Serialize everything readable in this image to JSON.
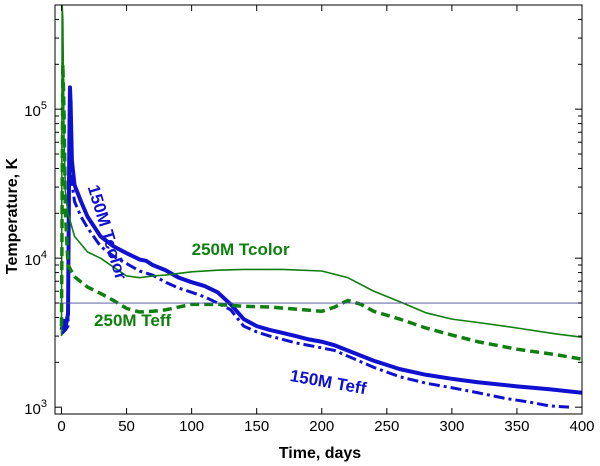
{
  "chart_data": {
    "type": "line",
    "title": "",
    "xlabel": "Time, days",
    "ylabel": "Temperature, K",
    "xlim": [
      -5,
      400
    ],
    "ylim": [
      900,
      500000
    ],
    "yscale": "log",
    "grid": false,
    "x_ticks": [
      0,
      50,
      100,
      150,
      200,
      250,
      300,
      350,
      400
    ],
    "x_tick_labels": [
      "0",
      "50",
      "100",
      "150",
      "200",
      "250",
      "300",
      "350",
      "400"
    ],
    "y_ticks": [
      {
        "value": 1000,
        "base": "10",
        "exp": "3"
      },
      {
        "value": 10000,
        "base": "10",
        "exp": "4"
      },
      {
        "value": 100000,
        "base": "10",
        "exp": "5"
      }
    ],
    "colors": {
      "blue": "#1010d0",
      "green": "#0f7f0f",
      "ref": "#4a4a9a"
    },
    "series": [
      {
        "name": "150M Tcolor",
        "color": "#1010d0",
        "style": "solid",
        "width": 4,
        "points": [
          [
            0,
            3300
          ],
          [
            2,
            3800
          ],
          [
            3,
            3400
          ],
          [
            4,
            3800
          ],
          [
            5,
            4200
          ],
          [
            5.5,
            15000
          ],
          [
            6,
            60000
          ],
          [
            6.5,
            140000
          ],
          [
            7,
            110000
          ],
          [
            8,
            45000
          ],
          [
            10,
            31000
          ],
          [
            15,
            24000
          ],
          [
            20,
            19000
          ],
          [
            30,
            14000
          ],
          [
            40,
            12000
          ],
          [
            50,
            10800
          ],
          [
            60,
            9800
          ],
          [
            65,
            9600
          ],
          [
            70,
            9000
          ],
          [
            80,
            8300
          ],
          [
            90,
            7400
          ],
          [
            100,
            6900
          ],
          [
            110,
            6500
          ],
          [
            120,
            5900
          ],
          [
            130,
            4900
          ],
          [
            140,
            3900
          ],
          [
            150,
            3500
          ],
          [
            160,
            3300
          ],
          [
            170,
            3150
          ],
          [
            180,
            3000
          ],
          [
            190,
            2850
          ],
          [
            200,
            2750
          ],
          [
            210,
            2600
          ],
          [
            220,
            2400
          ],
          [
            240,
            2050
          ],
          [
            260,
            1800
          ],
          [
            280,
            1650
          ],
          [
            300,
            1550
          ],
          [
            320,
            1470
          ],
          [
            350,
            1380
          ],
          [
            375,
            1320
          ],
          [
            400,
            1250
          ]
        ]
      },
      {
        "name": "150M Teff",
        "color": "#1010d0",
        "style": "dashdot",
        "width": 3,
        "points": [
          [
            0,
            3100
          ],
          [
            3,
            3300
          ],
          [
            5,
            3500
          ],
          [
            5.5,
            12000
          ],
          [
            6,
            40000
          ],
          [
            6.5,
            80000
          ],
          [
            7,
            60000
          ],
          [
            8,
            32000
          ],
          [
            10,
            24000
          ],
          [
            15,
            19000
          ],
          [
            20,
            16000
          ],
          [
            30,
            12000
          ],
          [
            40,
            10300
          ],
          [
            50,
            9200
          ],
          [
            60,
            8200
          ],
          [
            70,
            7700
          ],
          [
            80,
            6900
          ],
          [
            90,
            6300
          ],
          [
            100,
            5900
          ],
          [
            110,
            5500
          ],
          [
            120,
            5000
          ],
          [
            130,
            4500
          ],
          [
            140,
            3500
          ],
          [
            150,
            3200
          ],
          [
            160,
            3000
          ],
          [
            170,
            2850
          ],
          [
            180,
            2700
          ],
          [
            190,
            2600
          ],
          [
            200,
            2500
          ],
          [
            210,
            2400
          ],
          [
            220,
            2200
          ],
          [
            240,
            1850
          ],
          [
            260,
            1600
          ],
          [
            280,
            1450
          ],
          [
            300,
            1350
          ],
          [
            320,
            1250
          ],
          [
            340,
            1150
          ],
          [
            360,
            1080
          ],
          [
            375,
            1020
          ],
          [
            390,
            1000
          ]
        ]
      },
      {
        "name": "250M Tcolor",
        "color": "#0f7f0f",
        "style": "solid",
        "width": 1.6,
        "points": [
          [
            0,
            3000
          ],
          [
            0.5,
            500000
          ],
          [
            1,
            400000
          ],
          [
            2,
            60000
          ],
          [
            3,
            28000
          ],
          [
            5,
            20000
          ],
          [
            10,
            14000
          ],
          [
            20,
            11000
          ],
          [
            30,
            10000
          ],
          [
            40,
            8700
          ],
          [
            50,
            7600
          ],
          [
            60,
            7400
          ],
          [
            70,
            7600
          ],
          [
            80,
            7700
          ],
          [
            90,
            7900
          ],
          [
            100,
            8100
          ],
          [
            120,
            8300
          ],
          [
            140,
            8400
          ],
          [
            170,
            8400
          ],
          [
            200,
            8200
          ],
          [
            220,
            7400
          ],
          [
            240,
            6000
          ],
          [
            260,
            5100
          ],
          [
            280,
            4300
          ],
          [
            300,
            3900
          ],
          [
            320,
            3700
          ],
          [
            350,
            3400
          ],
          [
            380,
            3100
          ],
          [
            400,
            2950
          ]
        ]
      },
      {
        "name": "250M Teff",
        "color": "#0f7f0f",
        "style": "dashed",
        "width": 3.5,
        "points": [
          [
            0,
            3500
          ],
          [
            1,
            200000
          ],
          [
            2,
            90000
          ],
          [
            3,
            20000
          ],
          [
            5,
            9000
          ],
          [
            10,
            7500
          ],
          [
            20,
            6400
          ],
          [
            30,
            5800
          ],
          [
            40,
            5200
          ],
          [
            50,
            4600
          ],
          [
            60,
            4350
          ],
          [
            70,
            4400
          ],
          [
            80,
            4500
          ],
          [
            90,
            4700
          ],
          [
            100,
            4900
          ],
          [
            120,
            4900
          ],
          [
            140,
            4750
          ],
          [
            160,
            4700
          ],
          [
            180,
            4550
          ],
          [
            200,
            4400
          ],
          [
            210,
            4700
          ],
          [
            220,
            5200
          ],
          [
            230,
            4900
          ],
          [
            240,
            4400
          ],
          [
            260,
            3900
          ],
          [
            280,
            3400
          ],
          [
            300,
            3050
          ],
          [
            320,
            2750
          ],
          [
            350,
            2450
          ],
          [
            380,
            2250
          ],
          [
            400,
            2100
          ]
        ]
      },
      {
        "name": "reference",
        "color": "#4a4a9a",
        "style": "solid",
        "width": 0.9,
        "points": [
          [
            -5,
            5000
          ],
          [
            400,
            5000
          ]
        ]
      }
    ],
    "annotations": [
      {
        "text": "150M Tcolor",
        "x": 20,
        "y": 30000,
        "color": "#1010d0",
        "rotate": 73
      },
      {
        "text": "250M Tcolor",
        "x": 100,
        "y": 10500,
        "color": "#0f7f0f",
        "rotate": 0
      },
      {
        "text": "250M Teff",
        "x": 25,
        "y": 3500,
        "color": "#0f7f0f",
        "rotate": 0
      },
      {
        "text": "150M Teff",
        "x": 175,
        "y": 1500,
        "color": "#1010d0",
        "rotate": 10
      }
    ]
  }
}
